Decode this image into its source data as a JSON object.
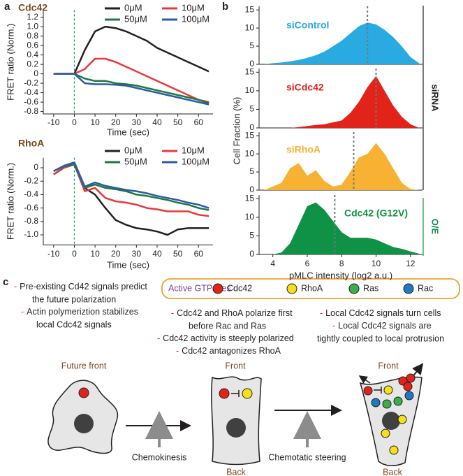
{
  "panel_labels": [
    "a",
    "b",
    "c"
  ],
  "chart_data": [
    {
      "type": "line",
      "title": "Cdc42",
      "xlabel": "Time (sec)",
      "ylabel": "FRET ratio (Norm.)",
      "x": [
        -10,
        -5,
        0,
        5,
        10,
        15,
        20,
        25,
        30,
        35,
        40,
        45,
        50,
        55,
        60,
        65
      ],
      "xlim": [
        -15,
        67
      ],
      "xticks": [
        -10,
        0,
        10,
        20,
        30,
        40,
        50,
        60
      ],
      "ylim": [
        -0.85,
        1.35
      ],
      "yticks": [
        -0.8,
        -0.6,
        -0.4,
        -0.2,
        0,
        0.2,
        0.4,
        0.6,
        0.8,
        {
          "value": 1,
          "label": "1.0"
        },
        1.2
      ],
      "vline": 0,
      "series": [
        {
          "name": "0μM",
          "color": "#231f20",
          "values": [
            0,
            0,
            0,
            0.5,
            0.9,
            1.0,
            0.97,
            0.9,
            0.8,
            0.7,
            0.55,
            0.45,
            0.35,
            0.25,
            0.15,
            0.05
          ]
        },
        {
          "name": "10μM",
          "color": "#e8383d",
          "values": [
            0,
            0,
            0,
            0.1,
            0.32,
            0.32,
            0.25,
            0.15,
            0.05,
            -0.05,
            -0.15,
            -0.25,
            -0.35,
            -0.45,
            -0.55,
            -0.6
          ]
        },
        {
          "name": "50μM",
          "color": "#1b7a3e",
          "values": [
            0,
            0,
            0,
            -0.1,
            -0.15,
            -0.15,
            -0.2,
            -0.22,
            -0.25,
            -0.3,
            -0.35,
            -0.4,
            -0.45,
            -0.5,
            -0.55,
            -0.62
          ]
        },
        {
          "name": "100μM",
          "color": "#2e5aa8",
          "values": [
            0,
            0,
            0,
            -0.2,
            -0.22,
            -0.22,
            -0.23,
            -0.25,
            -0.3,
            -0.35,
            -0.4,
            -0.45,
            -0.5,
            -0.55,
            -0.6,
            -0.65
          ]
        }
      ]
    },
    {
      "type": "line",
      "title": "RhoA",
      "xlabel": "Time (sec)",
      "ylabel": "FRET ratio (Norm.)",
      "x": [
        -10,
        -5,
        0,
        5,
        10,
        15,
        20,
        25,
        30,
        35,
        40,
        45,
        50,
        55,
        60,
        65
      ],
      "xlim": [
        -15,
        67
      ],
      "xticks": [
        -10,
        0,
        10,
        20,
        30,
        40,
        50,
        60
      ],
      "ylim": [
        -1.15,
        0.15
      ],
      "yticks": [
        {
          "value": -1,
          "label": "-1.0"
        },
        -0.8,
        -0.6,
        -0.4,
        -0.2,
        0
      ],
      "vline": 0,
      "series": [
        {
          "name": "0μM",
          "color": "#231f20",
          "values": [
            -0.1,
            0,
            0.05,
            -0.3,
            -0.4,
            -0.6,
            -0.78,
            -0.85,
            -0.9,
            -0.92,
            -0.95,
            -1.0,
            -0.92,
            -0.9,
            -0.9,
            -0.9
          ]
        },
        {
          "name": "10μM",
          "color": "#e8383d",
          "values": [
            -0.1,
            0,
            0.05,
            -0.35,
            -0.3,
            -0.45,
            -0.5,
            -0.52,
            -0.55,
            -0.6,
            -0.62,
            -0.65,
            -0.65,
            -0.65,
            -0.7,
            -0.72
          ]
        },
        {
          "name": "50μM",
          "color": "#1b7a3e",
          "values": [
            -0.05,
            0.02,
            0.05,
            -0.3,
            -0.25,
            -0.3,
            -0.32,
            -0.35,
            -0.4,
            -0.42,
            -0.45,
            -0.48,
            -0.52,
            -0.55,
            -0.6,
            -0.63
          ]
        },
        {
          "name": "100μM",
          "color": "#2e5aa8",
          "values": [
            -0.05,
            0.03,
            0.08,
            -0.28,
            -0.22,
            -0.27,
            -0.3,
            -0.33,
            -0.35,
            -0.38,
            -0.42,
            -0.45,
            -0.48,
            -0.52,
            -0.55,
            -0.6
          ]
        }
      ]
    },
    {
      "type": "area",
      "title": "siControl",
      "color": "#29aae1",
      "x": [
        3.5,
        4,
        4.5,
        5,
        5.5,
        6,
        6.5,
        7,
        7.5,
        8,
        8.5,
        9,
        9.5,
        10,
        10.5,
        11,
        11.5,
        12,
        12.5
      ],
      "values": [
        0,
        0.3,
        0.5,
        0.8,
        1.2,
        1.8,
        2.5,
        3.5,
        5,
        6.5,
        8.5,
        10.5,
        11.5,
        11,
        9.5,
        7.5,
        5,
        2,
        0.3
      ],
      "xlim": [
        3.2,
        12.7
      ],
      "ylim": [
        0,
        16
      ],
      "yticks": [
        0,
        5,
        10,
        15
      ],
      "vline": 9.5
    },
    {
      "type": "area",
      "title": "siCdc42",
      "color": "#e2231a",
      "x": [
        3.5,
        4,
        4.5,
        5,
        5.5,
        6,
        6.5,
        7,
        7.5,
        8,
        8.5,
        9,
        9.5,
        10,
        10.5,
        11,
        11.5,
        12,
        12.5
      ],
      "values": [
        0,
        0,
        0,
        0,
        0.2,
        0.5,
        0.8,
        1,
        1.5,
        2,
        4,
        7,
        11,
        14,
        10,
        6,
        3,
        1,
        0
      ],
      "xlim": [
        3.2,
        12.7
      ],
      "ylim": [
        0,
        16
      ],
      "yticks": [
        0,
        5,
        10,
        15
      ],
      "vline": 10
    },
    {
      "type": "area",
      "title": "siRhoA",
      "color": "#f7b133",
      "x": [
        3.5,
        4,
        4.5,
        5,
        5.5,
        6,
        6.5,
        7,
        7.5,
        8,
        8.5,
        9,
        9.5,
        10,
        10.5,
        11,
        11.5,
        12,
        12.5
      ],
      "values": [
        0,
        1,
        2,
        6,
        7.5,
        4,
        5.5,
        2.5,
        1,
        1.5,
        5,
        9,
        10,
        13,
        10,
        6,
        2,
        0.3,
        0
      ],
      "xlim": [
        3.2,
        12.7
      ],
      "ylim": [
        0,
        16
      ],
      "yticks": [
        0,
        5,
        10,
        15
      ],
      "vline": 8.7
    },
    {
      "type": "area",
      "title": "Cdc42 (G12V)",
      "color": "#0f9245",
      "xlabel": "pMLC intensity (log2 a.u.)",
      "x": [
        3.5,
        4,
        4.5,
        5,
        5.5,
        6,
        6.5,
        7,
        7.5,
        8,
        8.5,
        9,
        9.5,
        10,
        10.5,
        11,
        11.5,
        12,
        12.5
      ],
      "values": [
        0,
        0,
        0.5,
        3,
        8,
        13,
        14,
        12,
        9,
        6,
        4.5,
        4.5,
        4.5,
        4,
        3,
        2,
        1.5,
        0.8,
        0.2
      ],
      "xlim": [
        3.2,
        12.7
      ],
      "xticks": [
        4,
        6,
        8,
        10,
        12
      ],
      "ylim": [
        0,
        16
      ],
      "yticks": [
        0,
        5,
        10,
        15
      ],
      "vline": 7.6
    }
  ],
  "panel_b": {
    "ylabel": "Cell Fraction (%)",
    "group_labels": [
      "siRNA",
      "O/E"
    ]
  },
  "diagram": {
    "notes_left": [
      {
        "marker": "-",
        "lines": [
          "Pre-existing Cd42 signals predict",
          "the future polarization"
        ]
      },
      {
        "marker": "-",
        "lines": [
          "Actin polymeriztion stabilizes",
          "local Cdc42 signals"
        ]
      }
    ],
    "legend_title": "Active GTPases",
    "legend_items": [
      "Cdc42",
      "RhoA",
      "Ras",
      "Rac"
    ],
    "notes_middle": [
      {
        "marker": "-",
        "lines": [
          "Cdc42 and RhoA polarize first",
          "before Rac and Ras"
        ]
      },
      {
        "marker": "-",
        "lines": [
          "Cdc42 activity is steeply polarized"
        ]
      },
      {
        "marker": "-",
        "lines": [
          "Cdc42 antagonizes RhoA"
        ]
      }
    ],
    "notes_right": [
      {
        "marker": "-",
        "lines": [
          "Local Cdc42 signals turn cells"
        ]
      },
      {
        "marker": "-",
        "lines": [
          "Local Cdc42 signals are",
          "tightly coupled to local protrusion"
        ]
      }
    ],
    "cell_labels": [
      "Future front",
      "Front",
      "Back",
      "Front",
      "Back"
    ],
    "transitions": [
      "Chemokinesis",
      "Chemotatic steering"
    ]
  }
}
